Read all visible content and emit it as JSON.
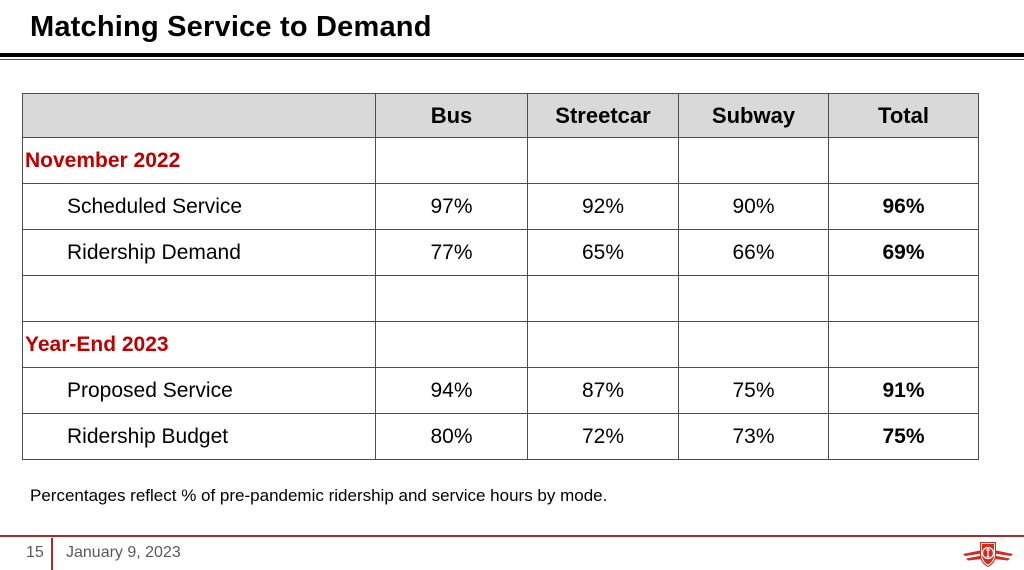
{
  "slide": {
    "title": "Matching Service to Demand",
    "footnote": "Percentages reflect % of pre-pandemic ridership and service hours by mode."
  },
  "table": {
    "columns": [
      "",
      "Bus",
      "Streetcar",
      "Subway",
      "Total"
    ],
    "rows": [
      {
        "type": "section",
        "label": "November 2022",
        "values": [
          "",
          "",
          "",
          ""
        ]
      },
      {
        "type": "data",
        "label": "Scheduled Service",
        "values": [
          "97%",
          "92%",
          "90%",
          "96%"
        ]
      },
      {
        "type": "data",
        "label": "Ridership Demand",
        "values": [
          "77%",
          "65%",
          "66%",
          "69%"
        ]
      },
      {
        "type": "empty",
        "label": "",
        "values": [
          "",
          "",
          "",
          ""
        ]
      },
      {
        "type": "section",
        "label": "Year-End 2023",
        "values": [
          "",
          "",
          "",
          ""
        ]
      },
      {
        "type": "data",
        "label": "Proposed Service",
        "values": [
          "94%",
          "87%",
          "75%",
          "91%"
        ]
      },
      {
        "type": "data",
        "label": "Ridership Budget",
        "values": [
          "80%",
          "72%",
          "73%",
          "75%"
        ]
      }
    ]
  },
  "footer": {
    "page_number": "15",
    "date": "January 9, 2023",
    "logo_icon": "ttc-logo"
  },
  "colors": {
    "section_red": "#c00000",
    "header_bg": "#d9d9d9",
    "table_border": "#4d4d4d",
    "footer_red": "#a62b2b",
    "footer_gray": "#595959",
    "logo_red": "#d52b1e"
  }
}
